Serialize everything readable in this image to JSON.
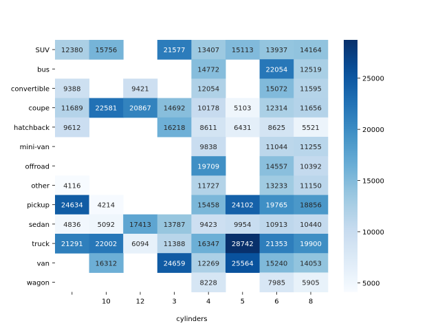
{
  "chart_data": {
    "type": "heatmap",
    "xlabel": "cylinders",
    "ylabel": "",
    "x_categories": [
      "",
      "10",
      "12",
      "3",
      "4",
      "5",
      "6",
      "8"
    ],
    "y_categories": [
      "SUV",
      "bus",
      "convertible",
      "coupe",
      "hatchback",
      "mini-van",
      "offroad",
      "other",
      "pickup",
      "sedan",
      "truck",
      "van",
      "wagon"
    ],
    "values": [
      [
        12380,
        15756,
        null,
        21577,
        13407,
        15113,
        13937,
        14164
      ],
      [
        null,
        null,
        null,
        null,
        14772,
        null,
        22054,
        12519
      ],
      [
        9388,
        null,
        9421,
        null,
        12054,
        null,
        15072,
        11595
      ],
      [
        11689,
        22581,
        20867,
        14692,
        10178,
        5103,
        12314,
        11656
      ],
      [
        9612,
        null,
        null,
        16218,
        8611,
        6431,
        8625,
        5521
      ],
      [
        null,
        null,
        null,
        null,
        9838,
        null,
        11044,
        11255
      ],
      [
        null,
        null,
        null,
        null,
        19709,
        null,
        14557,
        10392
      ],
      [
        4116,
        null,
        null,
        null,
        11727,
        null,
        13233,
        11150
      ],
      [
        24634,
        4214,
        null,
        null,
        15458,
        24102,
        19765,
        18856
      ],
      [
        4836,
        5092,
        17413,
        13787,
        9423,
        9954,
        10913,
        10440
      ],
      [
        21291,
        22002,
        6094,
        11388,
        16347,
        28742,
        21353,
        19900
      ],
      [
        null,
        16312,
        null,
        24659,
        12269,
        25564,
        15240,
        14053
      ],
      [
        null,
        null,
        null,
        null,
        8228,
        null,
        7985,
        5905
      ]
    ],
    "colorbar": {
      "min": 4116,
      "max": 28742,
      "ticks": [
        5000,
        10000,
        15000,
        20000,
        25000
      ],
      "colormap": "Blues"
    },
    "annotations": true,
    "grid": false,
    "legend": "colorbar-right"
  }
}
